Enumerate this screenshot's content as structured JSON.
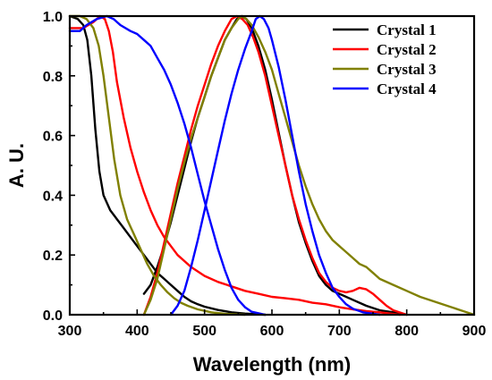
{
  "chart_data": {
    "type": "line",
    "xlabel": "Wavelength (nm)",
    "ylabel": "A. U.",
    "xlim": [
      300,
      900
    ],
    "ylim": [
      0,
      1.0
    ],
    "xticks": [
      "300",
      "400",
      "500",
      "600",
      "700",
      "800",
      "900"
    ],
    "yticks": [
      "0.0",
      "0.2",
      "0.4",
      "0.6",
      "0.8",
      "1.0"
    ],
    "grid": false,
    "legend_position": "top-right",
    "series": [
      {
        "name": "Crystal 1",
        "color": "#000000",
        "segments": [
          [
            [
              300,
              1.0
            ],
            [
              312,
              0.99
            ],
            [
              320,
              0.97
            ],
            [
              326,
              0.92
            ],
            [
              332,
              0.8
            ],
            [
              338,
              0.62
            ],
            [
              344,
              0.48
            ],
            [
              350,
              0.4
            ],
            [
              360,
              0.35
            ],
            [
              370,
              0.32
            ],
            [
              380,
              0.29
            ],
            [
              390,
              0.26
            ],
            [
              400,
              0.23
            ],
            [
              410,
              0.2
            ],
            [
              420,
              0.17
            ],
            [
              430,
              0.14
            ],
            [
              440,
              0.12
            ],
            [
              450,
              0.1
            ],
            [
              460,
              0.08
            ],
            [
              470,
              0.06
            ],
            [
              480,
              0.045
            ],
            [
              490,
              0.035
            ],
            [
              500,
              0.027
            ],
            [
              520,
              0.016
            ],
            [
              540,
              0.008
            ],
            [
              560,
              0.004
            ],
            [
              590,
              0.0
            ]
          ],
          [
            [
              410,
              0.07
            ],
            [
              420,
              0.1
            ],
            [
              430,
              0.16
            ],
            [
              440,
              0.23
            ],
            [
              450,
              0.31
            ],
            [
              460,
              0.4
            ],
            [
              470,
              0.49
            ],
            [
              480,
              0.58
            ],
            [
              490,
              0.66
            ],
            [
              500,
              0.73
            ],
            [
              510,
              0.8
            ],
            [
              520,
              0.86
            ],
            [
              530,
              0.92
            ],
            [
              540,
              0.96
            ],
            [
              548,
              0.99
            ],
            [
              555,
              1.0
            ],
            [
              562,
              0.99
            ],
            [
              570,
              0.96
            ],
            [
              580,
              0.9
            ],
            [
              590,
              0.82
            ],
            [
              600,
              0.72
            ],
            [
              610,
              0.61
            ],
            [
              620,
              0.5
            ],
            [
              630,
              0.4
            ],
            [
              640,
              0.31
            ],
            [
              650,
              0.24
            ],
            [
              660,
              0.18
            ],
            [
              670,
              0.13
            ],
            [
              680,
              0.1
            ],
            [
              690,
              0.08
            ],
            [
              700,
              0.07
            ],
            [
              720,
              0.05
            ],
            [
              740,
              0.03
            ],
            [
              760,
              0.015
            ],
            [
              780,
              0.008
            ],
            [
              800,
              0.0
            ]
          ]
        ]
      },
      {
        "name": "Crystal 2",
        "color": "#ff0000",
        "segments": [
          [
            [
              300,
              0.96
            ],
            [
              320,
              0.96
            ],
            [
              335,
              0.98
            ],
            [
              345,
              1.0
            ],
            [
              352,
              0.99
            ],
            [
              358,
              0.95
            ],
            [
              364,
              0.88
            ],
            [
              370,
              0.78
            ],
            [
              380,
              0.66
            ],
            [
              390,
              0.56
            ],
            [
              400,
              0.48
            ],
            [
              410,
              0.41
            ],
            [
              420,
              0.35
            ],
            [
              430,
              0.3
            ],
            [
              440,
              0.26
            ],
            [
              450,
              0.23
            ],
            [
              460,
              0.2
            ],
            [
              480,
              0.16
            ],
            [
              500,
              0.13
            ],
            [
              520,
              0.11
            ],
            [
              540,
              0.095
            ],
            [
              560,
              0.08
            ],
            [
              580,
              0.07
            ],
            [
              600,
              0.06
            ],
            [
              620,
              0.055
            ],
            [
              640,
              0.05
            ],
            [
              660,
              0.04
            ],
            [
              680,
              0.035
            ],
            [
              700,
              0.025
            ],
            [
              720,
              0.018
            ],
            [
              740,
              0.012
            ],
            [
              760,
              0.008
            ],
            [
              790,
              0.0
            ]
          ],
          [
            [
              410,
              0.0
            ],
            [
              420,
              0.06
            ],
            [
              430,
              0.14
            ],
            [
              440,
              0.24
            ],
            [
              450,
              0.34
            ],
            [
              460,
              0.44
            ],
            [
              470,
              0.53
            ],
            [
              480,
              0.62
            ],
            [
              490,
              0.7
            ],
            [
              500,
              0.77
            ],
            [
              510,
              0.84
            ],
            [
              520,
              0.9
            ],
            [
              530,
              0.95
            ],
            [
              540,
              0.99
            ],
            [
              548,
              1.0
            ],
            [
              556,
              0.99
            ],
            [
              564,
              0.97
            ],
            [
              572,
              0.93
            ],
            [
              580,
              0.88
            ],
            [
              590,
              0.8
            ],
            [
              600,
              0.7
            ],
            [
              610,
              0.6
            ],
            [
              620,
              0.5
            ],
            [
              630,
              0.4
            ],
            [
              640,
              0.32
            ],
            [
              650,
              0.25
            ],
            [
              660,
              0.19
            ],
            [
              670,
              0.14
            ],
            [
              680,
              0.11
            ],
            [
              690,
              0.09
            ],
            [
              700,
              0.08
            ],
            [
              710,
              0.075
            ],
            [
              720,
              0.08
            ],
            [
              730,
              0.09
            ],
            [
              740,
              0.085
            ],
            [
              750,
              0.07
            ],
            [
              760,
              0.05
            ],
            [
              770,
              0.03
            ],
            [
              780,
              0.015
            ],
            [
              800,
              0.0
            ]
          ]
        ]
      },
      {
        "name": "Crystal 3",
        "color": "#808000",
        "segments": [
          [
            [
              300,
              1.0
            ],
            [
              315,
              1.0
            ],
            [
              325,
              0.99
            ],
            [
              335,
              0.96
            ],
            [
              343,
              0.9
            ],
            [
              350,
              0.8
            ],
            [
              358,
              0.66
            ],
            [
              366,
              0.52
            ],
            [
              375,
              0.4
            ],
            [
              385,
              0.32
            ],
            [
              395,
              0.27
            ],
            [
              405,
              0.22
            ],
            [
              415,
              0.17
            ],
            [
              425,
              0.13
            ],
            [
              435,
              0.1
            ],
            [
              445,
              0.075
            ],
            [
              455,
              0.055
            ],
            [
              465,
              0.04
            ],
            [
              475,
              0.03
            ],
            [
              490,
              0.018
            ],
            [
              510,
              0.008
            ],
            [
              530,
              0.003
            ],
            [
              560,
              0.0
            ]
          ],
          [
            [
              410,
              0.0
            ],
            [
              420,
              0.05
            ],
            [
              430,
              0.12
            ],
            [
              440,
              0.22
            ],
            [
              450,
              0.32
            ],
            [
              460,
              0.42
            ],
            [
              470,
              0.51
            ],
            [
              480,
              0.59
            ],
            [
              490,
              0.66
            ],
            [
              500,
              0.73
            ],
            [
              510,
              0.8
            ],
            [
              520,
              0.86
            ],
            [
              530,
              0.92
            ],
            [
              540,
              0.96
            ],
            [
              550,
              0.99
            ],
            [
              556,
              1.0
            ],
            [
              562,
              0.99
            ],
            [
              570,
              0.97
            ],
            [
              580,
              0.93
            ],
            [
              590,
              0.88
            ],
            [
              600,
              0.82
            ],
            [
              610,
              0.74
            ],
            [
              620,
              0.66
            ],
            [
              630,
              0.58
            ],
            [
              640,
              0.5
            ],
            [
              650,
              0.43
            ],
            [
              660,
              0.37
            ],
            [
              670,
              0.32
            ],
            [
              680,
              0.28
            ],
            [
              690,
              0.25
            ],
            [
              700,
              0.23
            ],
            [
              710,
              0.21
            ],
            [
              720,
              0.19
            ],
            [
              730,
              0.17
            ],
            [
              740,
              0.16
            ],
            [
              750,
              0.14
            ],
            [
              760,
              0.12
            ],
            [
              780,
              0.1
            ],
            [
              800,
              0.08
            ],
            [
              820,
              0.06
            ],
            [
              840,
              0.045
            ],
            [
              860,
              0.03
            ],
            [
              880,
              0.015
            ],
            [
              900,
              0.0
            ]
          ]
        ]
      },
      {
        "name": "Crystal 4",
        "color": "#0000ff",
        "segments": [
          [
            [
              300,
              0.95
            ],
            [
              315,
              0.95
            ],
            [
              325,
              0.97
            ],
            [
              340,
              0.99
            ],
            [
              355,
              1.0
            ],
            [
              365,
              0.99
            ],
            [
              375,
              0.97
            ],
            [
              390,
              0.95
            ],
            [
              400,
              0.94
            ],
            [
              410,
              0.92
            ],
            [
              420,
              0.9
            ],
            [
              430,
              0.86
            ],
            [
              440,
              0.82
            ],
            [
              450,
              0.77
            ],
            [
              460,
              0.71
            ],
            [
              470,
              0.64
            ],
            [
              480,
              0.56
            ],
            [
              490,
              0.47
            ],
            [
              500,
              0.38
            ],
            [
              510,
              0.3
            ],
            [
              520,
              0.22
            ],
            [
              530,
              0.15
            ],
            [
              540,
              0.09
            ],
            [
              550,
              0.05
            ],
            [
              560,
              0.025
            ],
            [
              570,
              0.01
            ],
            [
              590,
              0.0
            ]
          ],
          [
            [
              450,
              0.0
            ],
            [
              460,
              0.03
            ],
            [
              470,
              0.08
            ],
            [
              480,
              0.16
            ],
            [
              490,
              0.25
            ],
            [
              500,
              0.35
            ],
            [
              510,
              0.45
            ],
            [
              520,
              0.55
            ],
            [
              530,
              0.65
            ],
            [
              540,
              0.74
            ],
            [
              550,
              0.82
            ],
            [
              560,
              0.89
            ],
            [
              570,
              0.95
            ],
            [
              576,
              0.99
            ],
            [
              582,
              1.0
            ],
            [
              588,
              0.99
            ],
            [
              595,
              0.96
            ],
            [
              600,
              0.92
            ],
            [
              610,
              0.83
            ],
            [
              620,
              0.72
            ],
            [
              630,
              0.6
            ],
            [
              640,
              0.48
            ],
            [
              650,
              0.37
            ],
            [
              660,
              0.28
            ],
            [
              670,
              0.2
            ],
            [
              680,
              0.14
            ],
            [
              690,
              0.09
            ],
            [
              700,
              0.06
            ],
            [
              710,
              0.035
            ],
            [
              720,
              0.02
            ],
            [
              735,
              0.008
            ],
            [
              760,
              0.0
            ]
          ]
        ]
      }
    ]
  }
}
